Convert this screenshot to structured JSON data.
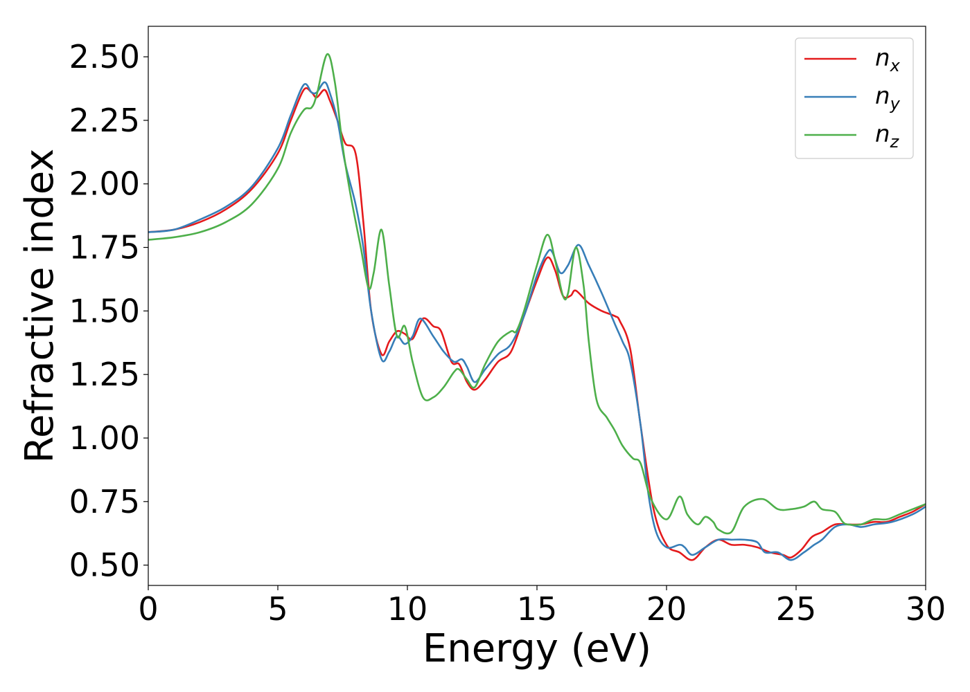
{
  "chart_data": {
    "type": "line",
    "title": "",
    "xlabel": "Energy (eV)",
    "ylabel": "Refractive index",
    "xlim": [
      0,
      30
    ],
    "ylim": [
      0.42,
      2.62
    ],
    "xticks": [
      0,
      5,
      10,
      15,
      20,
      25,
      30
    ],
    "xtick_labels": [
      "0",
      "5",
      "10",
      "15",
      "20",
      "25",
      "30"
    ],
    "yticks": [
      0.5,
      0.75,
      1.0,
      1.25,
      1.5,
      1.75,
      2.0,
      2.25,
      2.5
    ],
    "ytick_labels": [
      "0.50",
      "0.75",
      "1.00",
      "1.25",
      "1.50",
      "1.75",
      "2.00",
      "2.25",
      "2.50"
    ],
    "grid": false,
    "legend_position": "top-right",
    "series": [
      {
        "name": "n_x",
        "label_main": "n",
        "label_sub": "x",
        "color": "#e41a1c",
        "points": [
          [
            0,
            1.81
          ],
          [
            1,
            1.82
          ],
          [
            2,
            1.85
          ],
          [
            3,
            1.9
          ],
          [
            4,
            1.98
          ],
          [
            5,
            2.12
          ],
          [
            5.5,
            2.25
          ],
          [
            6,
            2.37
          ],
          [
            6.3,
            2.36
          ],
          [
            6.5,
            2.34
          ],
          [
            6.8,
            2.37
          ],
          [
            7,
            2.33
          ],
          [
            7.3,
            2.25
          ],
          [
            7.6,
            2.16
          ],
          [
            8,
            2.12
          ],
          [
            8.3,
            1.85
          ],
          [
            8.6,
            1.5
          ],
          [
            9,
            1.33
          ],
          [
            9.3,
            1.38
          ],
          [
            9.6,
            1.42
          ],
          [
            9.9,
            1.41
          ],
          [
            10.2,
            1.39
          ],
          [
            10.6,
            1.47
          ],
          [
            11,
            1.44
          ],
          [
            11.3,
            1.42
          ],
          [
            11.7,
            1.3
          ],
          [
            12,
            1.29
          ],
          [
            12.3,
            1.22
          ],
          [
            12.6,
            1.19
          ],
          [
            13,
            1.23
          ],
          [
            13.5,
            1.3
          ],
          [
            14,
            1.34
          ],
          [
            14.5,
            1.48
          ],
          [
            15,
            1.62
          ],
          [
            15.4,
            1.71
          ],
          [
            15.7,
            1.66
          ],
          [
            16,
            1.56
          ],
          [
            16.3,
            1.56
          ],
          [
            16.5,
            1.58
          ],
          [
            17,
            1.53
          ],
          [
            17.5,
            1.5
          ],
          [
            18,
            1.48
          ],
          [
            18.2,
            1.46
          ],
          [
            18.6,
            1.35
          ],
          [
            19,
            1.05
          ],
          [
            19.5,
            0.72
          ],
          [
            20,
            0.58
          ],
          [
            20.5,
            0.55
          ],
          [
            21,
            0.52
          ],
          [
            21.5,
            0.57
          ],
          [
            22,
            0.6
          ],
          [
            22.5,
            0.58
          ],
          [
            23,
            0.58
          ],
          [
            23.5,
            0.57
          ],
          [
            24,
            0.55
          ],
          [
            24.5,
            0.54
          ],
          [
            24.8,
            0.53
          ],
          [
            25.2,
            0.56
          ],
          [
            25.6,
            0.61
          ],
          [
            26,
            0.63
          ],
          [
            26.5,
            0.66
          ],
          [
            27,
            0.66
          ],
          [
            27.5,
            0.66
          ],
          [
            28,
            0.67
          ],
          [
            28.5,
            0.67
          ],
          [
            29,
            0.69
          ],
          [
            29.5,
            0.71
          ],
          [
            30,
            0.74
          ]
        ]
      },
      {
        "name": "n_y",
        "label_main": "n",
        "label_sub": "y",
        "color": "#377eb8",
        "points": [
          [
            0,
            1.81
          ],
          [
            1,
            1.82
          ],
          [
            2,
            1.86
          ],
          [
            3,
            1.91
          ],
          [
            4,
            1.99
          ],
          [
            5,
            2.14
          ],
          [
            5.5,
            2.27
          ],
          [
            6,
            2.39
          ],
          [
            6.3,
            2.36
          ],
          [
            6.5,
            2.36
          ],
          [
            6.8,
            2.4
          ],
          [
            7,
            2.36
          ],
          [
            7.3,
            2.25
          ],
          [
            7.6,
            2.08
          ],
          [
            8,
            1.92
          ],
          [
            8.3,
            1.75
          ],
          [
            8.6,
            1.5
          ],
          [
            9,
            1.31
          ],
          [
            9.3,
            1.34
          ],
          [
            9.6,
            1.4
          ],
          [
            9.9,
            1.37
          ],
          [
            10.2,
            1.4
          ],
          [
            10.5,
            1.47
          ],
          [
            11,
            1.4
          ],
          [
            11.4,
            1.34
          ],
          [
            11.8,
            1.3
          ],
          [
            12.1,
            1.31
          ],
          [
            12.3,
            1.28
          ],
          [
            12.6,
            1.22
          ],
          [
            13,
            1.27
          ],
          [
            13.5,
            1.33
          ],
          [
            14,
            1.37
          ],
          [
            14.5,
            1.48
          ],
          [
            15,
            1.64
          ],
          [
            15.4,
            1.73
          ],
          [
            15.6,
            1.73
          ],
          [
            15.9,
            1.65
          ],
          [
            16.2,
            1.68
          ],
          [
            16.6,
            1.76
          ],
          [
            17,
            1.68
          ],
          [
            17.5,
            1.57
          ],
          [
            18,
            1.45
          ],
          [
            18.3,
            1.38
          ],
          [
            18.6,
            1.3
          ],
          [
            19,
            1.05
          ],
          [
            19.3,
            0.78
          ],
          [
            19.6,
            0.63
          ],
          [
            20,
            0.57
          ],
          [
            20.5,
            0.58
          ],
          [
            20.7,
            0.57
          ],
          [
            21,
            0.54
          ],
          [
            21.5,
            0.57
          ],
          [
            22,
            0.6
          ],
          [
            22.5,
            0.6
          ],
          [
            23,
            0.6
          ],
          [
            23.5,
            0.59
          ],
          [
            23.8,
            0.55
          ],
          [
            24.3,
            0.55
          ],
          [
            24.8,
            0.52
          ],
          [
            25.3,
            0.55
          ],
          [
            25.7,
            0.58
          ],
          [
            26,
            0.6
          ],
          [
            26.5,
            0.65
          ],
          [
            27,
            0.66
          ],
          [
            27.5,
            0.65
          ],
          [
            28,
            0.66
          ],
          [
            28.7,
            0.67
          ],
          [
            29.5,
            0.7
          ],
          [
            30,
            0.73
          ]
        ]
      },
      {
        "name": "n_z",
        "label_main": "n",
        "label_sub": "z",
        "color": "#4daf4a",
        "points": [
          [
            0,
            1.78
          ],
          [
            1,
            1.79
          ],
          [
            2,
            1.81
          ],
          [
            3,
            1.85
          ],
          [
            4,
            1.92
          ],
          [
            5,
            2.06
          ],
          [
            5.5,
            2.2
          ],
          [
            6,
            2.29
          ],
          [
            6.3,
            2.3
          ],
          [
            6.5,
            2.35
          ],
          [
            6.9,
            2.51
          ],
          [
            7.2,
            2.4
          ],
          [
            7.5,
            2.15
          ],
          [
            7.8,
            1.96
          ],
          [
            8.2,
            1.75
          ],
          [
            8.5,
            1.59
          ],
          [
            8.7,
            1.65
          ],
          [
            9,
            1.82
          ],
          [
            9.3,
            1.6
          ],
          [
            9.6,
            1.4
          ],
          [
            9.9,
            1.44
          ],
          [
            10.2,
            1.3
          ],
          [
            10.6,
            1.16
          ],
          [
            11,
            1.16
          ],
          [
            11.4,
            1.2
          ],
          [
            11.8,
            1.26
          ],
          [
            12,
            1.27
          ],
          [
            12.3,
            1.23
          ],
          [
            12.6,
            1.2
          ],
          [
            13,
            1.29
          ],
          [
            13.5,
            1.38
          ],
          [
            14,
            1.42
          ],
          [
            14.2,
            1.42
          ],
          [
            14.5,
            1.5
          ],
          [
            15,
            1.68
          ],
          [
            15.4,
            1.8
          ],
          [
            15.7,
            1.7
          ],
          [
            16,
            1.56
          ],
          [
            16.2,
            1.57
          ],
          [
            16.5,
            1.75
          ],
          [
            16.8,
            1.6
          ],
          [
            17,
            1.38
          ],
          [
            17.3,
            1.15
          ],
          [
            17.7,
            1.08
          ],
          [
            18,
            1.03
          ],
          [
            18.3,
            0.97
          ],
          [
            18.7,
            0.92
          ],
          [
            19,
            0.9
          ],
          [
            19.4,
            0.76
          ],
          [
            20,
            0.68
          ],
          [
            20.5,
            0.77
          ],
          [
            20.8,
            0.7
          ],
          [
            21.2,
            0.66
          ],
          [
            21.5,
            0.69
          ],
          [
            21.8,
            0.67
          ],
          [
            22,
            0.64
          ],
          [
            22.5,
            0.63
          ],
          [
            23,
            0.73
          ],
          [
            23.7,
            0.76
          ],
          [
            24.3,
            0.72
          ],
          [
            24.8,
            0.72
          ],
          [
            25.3,
            0.73
          ],
          [
            25.7,
            0.75
          ],
          [
            26,
            0.72
          ],
          [
            26.5,
            0.71
          ],
          [
            26.8,
            0.67
          ],
          [
            27,
            0.66
          ],
          [
            27.5,
            0.66
          ],
          [
            28,
            0.68
          ],
          [
            28.5,
            0.68
          ],
          [
            29,
            0.7
          ],
          [
            29.5,
            0.72
          ],
          [
            30,
            0.74
          ]
        ]
      }
    ]
  }
}
